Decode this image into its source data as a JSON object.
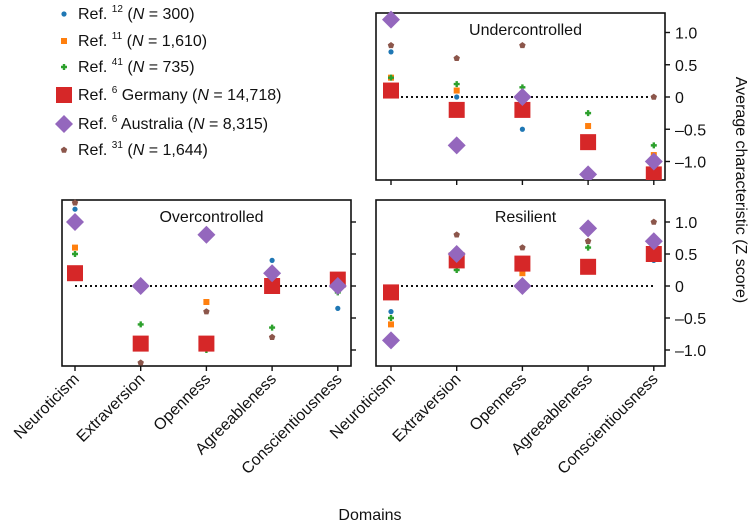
{
  "chart_data": {
    "type": "scatter",
    "xlabel": "Domains",
    "ylabel": "Average characteristic (Z score)",
    "ylim": [
      -1.3,
      1.3
    ],
    "yticks": [
      1.0,
      0.5,
      0,
      -0.5,
      -1.0
    ],
    "ytick_labels": [
      "1.0",
      "0.5",
      "0",
      "–0.5",
      "–1.0"
    ],
    "categories": [
      "Neuroticism",
      "Extraversion",
      "Openness",
      "Agreeableness",
      "Conscientiousness"
    ],
    "reference_line": 0,
    "legend_position": "top-left",
    "legend": [
      {
        "key": "ref12",
        "prefix": "Ref. ",
        "sup": "12",
        "label": " (",
        "n_italic": "N",
        "n_text": " = 300)",
        "color": "#1f77b4",
        "marker": "circle-small"
      },
      {
        "key": "ref11",
        "prefix": "Ref. ",
        "sup": "11",
        "label": " (",
        "n_italic": "N",
        "n_text": " = 1,610)",
        "color": "#ff7f0e",
        "marker": "square-small"
      },
      {
        "key": "ref41",
        "prefix": "Ref. ",
        "sup": "41",
        "label": " (",
        "n_italic": "N",
        "n_text": " = 735)",
        "color": "#2ca02c",
        "marker": "plus-small"
      },
      {
        "key": "ref6de",
        "prefix": "Ref. ",
        "sup": "6",
        "label": " Germany (",
        "n_italic": "N",
        "n_text": " = 14,718)",
        "color": "#d62728",
        "marker": "square-large"
      },
      {
        "key": "ref6au",
        "prefix": "Ref. ",
        "sup": "6",
        "label": " Australia (",
        "n_italic": "N",
        "n_text": " = 8,315)",
        "color": "#9467bd",
        "marker": "diamond-large"
      },
      {
        "key": "ref31",
        "prefix": "Ref. ",
        "sup": "31",
        "label": " (",
        "n_italic": "N",
        "n_text": " = 1,644)",
        "color": "#8c564b",
        "marker": "pentagon-small"
      }
    ],
    "panels": [
      {
        "title": "Undercontrolled",
        "series": {
          "ref12": [
            0.7,
            0.0,
            -0.5,
            null,
            -1.05
          ],
          "ref11": [
            0.3,
            0.1,
            -0.05,
            -0.45,
            -0.9
          ],
          "ref41": [
            0.3,
            0.2,
            0.15,
            -0.25,
            -0.75
          ],
          "ref6de": [
            0.1,
            -0.2,
            -0.2,
            -0.7,
            -1.2
          ],
          "ref6au": [
            1.2,
            -0.75,
            0.0,
            -1.2,
            -1.0
          ],
          "ref31": [
            0.8,
            0.6,
            0.8,
            -1.2,
            0.0
          ]
        }
      },
      {
        "title": "Overcontrolled",
        "series": {
          "ref12": [
            1.2,
            null,
            null,
            0.4,
            -0.35
          ],
          "ref11": [
            0.6,
            null,
            -0.25,
            null,
            null
          ],
          "ref41": [
            0.5,
            -0.6,
            -1.0,
            -0.65,
            -0.1
          ],
          "ref6de": [
            0.2,
            -0.9,
            -0.9,
            0.0,
            0.1
          ],
          "ref6au": [
            1.0,
            0.0,
            0.8,
            0.2,
            0.0
          ],
          "ref31": [
            1.3,
            -1.2,
            -0.4,
            -0.8,
            null
          ]
        }
      },
      {
        "title": "Resilient",
        "series": {
          "ref12": [
            -0.4,
            null,
            null,
            null,
            0.4
          ],
          "ref11": [
            -0.6,
            null,
            0.2,
            null,
            null
          ],
          "ref41": [
            -0.5,
            0.25,
            0.3,
            0.6,
            0.6
          ],
          "ref6de": [
            -0.1,
            0.4,
            0.35,
            0.3,
            0.5
          ],
          "ref6au": [
            -0.85,
            0.5,
            0.0,
            0.9,
            0.7
          ],
          "ref31": [
            -0.9,
            0.8,
            0.6,
            0.7,
            1.0
          ]
        }
      }
    ]
  }
}
